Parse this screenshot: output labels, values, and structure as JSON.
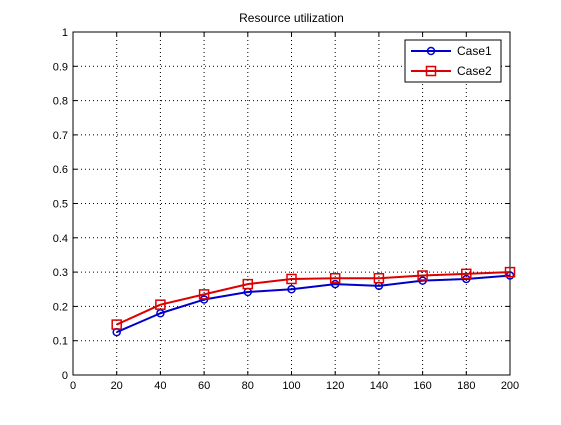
{
  "chart_data": {
    "type": "line",
    "title": "Resource utilization",
    "xlabel": "",
    "ylabel": "",
    "x": [
      20,
      40,
      60,
      80,
      100,
      120,
      140,
      160,
      180,
      200
    ],
    "xlim": [
      0,
      200
    ],
    "ylim": [
      0,
      1
    ],
    "xticks": [
      0,
      20,
      40,
      60,
      80,
      100,
      120,
      140,
      160,
      180,
      200
    ],
    "yticks": [
      0,
      0.1,
      0.2,
      0.3,
      0.4,
      0.5,
      0.6,
      0.7,
      0.8,
      0.9,
      1
    ],
    "xtick_labels": [
      "0",
      "20",
      "40",
      "60",
      "80",
      "100",
      "120",
      "140",
      "160",
      "180",
      "200"
    ],
    "ytick_labels": [
      "0",
      "0.1",
      "0.2",
      "0.3",
      "0.4",
      "0.5",
      "0.6",
      "0.7",
      "0.8",
      "0.9",
      "1"
    ],
    "grid": true,
    "legend_position": "top-right",
    "series": [
      {
        "name": "Case1",
        "color": "#0000cc",
        "marker": "circle",
        "values": [
          0.125,
          0.18,
          0.22,
          0.242,
          0.25,
          0.265,
          0.26,
          0.275,
          0.28,
          0.29
        ]
      },
      {
        "name": "Case2",
        "color": "#dd0000",
        "marker": "square",
        "values": [
          0.147,
          0.205,
          0.235,
          0.265,
          0.28,
          0.282,
          0.282,
          0.29,
          0.295,
          0.3
        ]
      }
    ]
  }
}
